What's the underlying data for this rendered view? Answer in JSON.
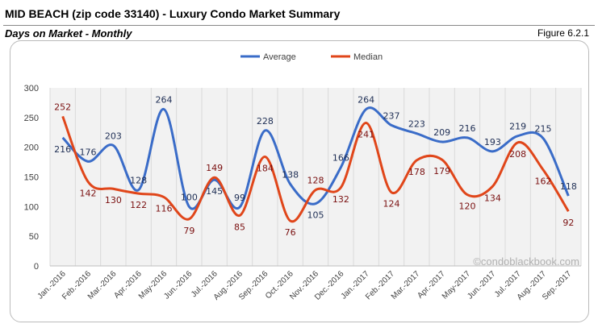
{
  "header": {
    "title": "MID BEACH (zip code 33140) - Luxury Condo Market Summary",
    "subtitle": "Days on Market - Monthly",
    "figure": "Figure 6.2.1"
  },
  "watermark": "©condoblackbook.com",
  "chart_data": {
    "type": "line",
    "categories": [
      "Jan.-2016",
      "Feb.-2016",
      "Mar.-2016",
      "Apr.-2016",
      "May-2016",
      "Jun.-2016",
      "Jul.-2016",
      "Aug.-2016",
      "Sep.-2016",
      "Oct.-2016",
      "Nov.-2016",
      "Dec.-2016",
      "Jan.-2017",
      "Feb.-2017",
      "Mar.-2017",
      "Apr.-2017",
      "May-2017",
      "Jun.-2017",
      "Jul.-2017",
      "Aug.-2017",
      "Sep.-2017"
    ],
    "series": [
      {
        "name": "Average",
        "color": "#3a6cc8",
        "label_color": "#1f2f55",
        "values": [
          216,
          176,
          203,
          128,
          264,
          100,
          145,
          99,
          228,
          138,
          105,
          166,
          264,
          237,
          223,
          209,
          216,
          193,
          219,
          215,
          118
        ]
      },
      {
        "name": "Median",
        "color": "#e0461a",
        "label_color": "#7a1010",
        "values": [
          252,
          142,
          130,
          122,
          116,
          79,
          149,
          85,
          184,
          76,
          128,
          132,
          241,
          124,
          178,
          179,
          120,
          134,
          208,
          162,
          92
        ]
      }
    ],
    "yticks": [
      0,
      50,
      100,
      150,
      200,
      250,
      300
    ],
    "ylim": [
      0,
      300
    ],
    "legend": "top-center",
    "grid": "vertical"
  }
}
